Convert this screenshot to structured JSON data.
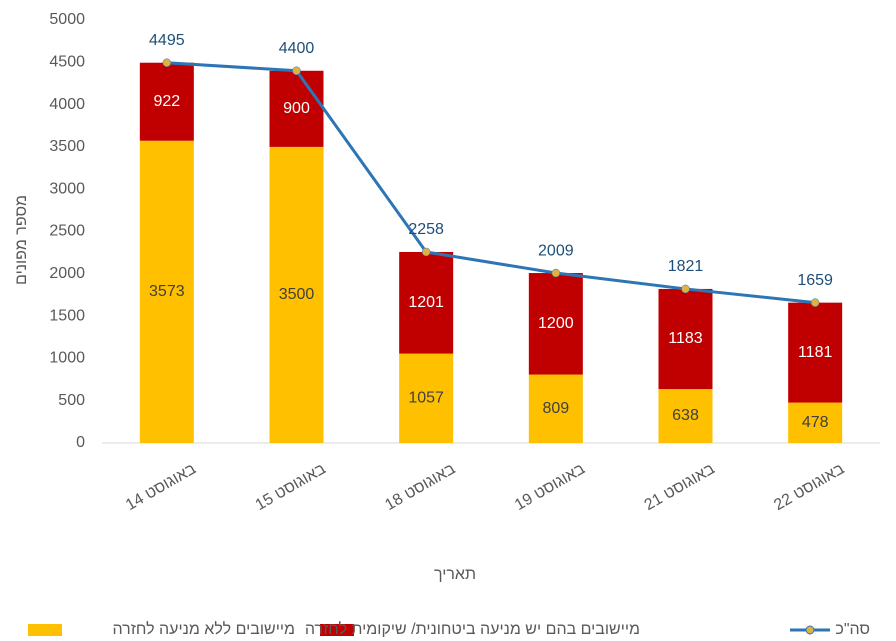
{
  "chart_data": {
    "type": "bar",
    "stacked": true,
    "categories": [
      "14 באוגוסט",
      "15 באוגוסט",
      "18 באוגוסט",
      "19 באוגוסט",
      "21 באוגוסט",
      "22 באוגוסט"
    ],
    "series": [
      {
        "name": "מיישובים ללא מניעה לחזרה",
        "type": "bar",
        "color": "#ffc000",
        "values": [
          3573,
          3500,
          1057,
          809,
          638,
          478
        ]
      },
      {
        "name": "מיישובים בהם יש מניעה ביטחונית/ שיקומית לחזרה",
        "type": "bar",
        "color": "#c00000",
        "values": [
          922,
          900,
          1201,
          1200,
          1183,
          1181
        ]
      },
      {
        "name": "סה\"כ",
        "type": "line",
        "color": "#2e75b6",
        "marker_color": "#e0b040",
        "values": [
          4495,
          4400,
          2258,
          2009,
          1821,
          1659
        ]
      }
    ],
    "y_label": "מספר מפונים",
    "x_label": "תאריך",
    "ylim": [
      0,
      5000
    ],
    "yticks": [
      0,
      500,
      1000,
      1500,
      2000,
      2500,
      3000,
      3500,
      4000,
      4500,
      5000
    ],
    "legend": "bottom"
  }
}
